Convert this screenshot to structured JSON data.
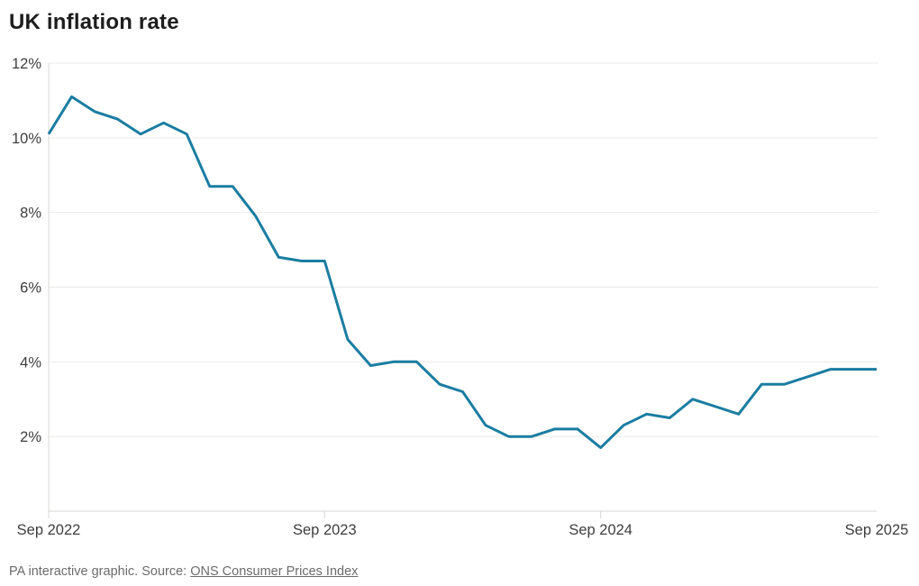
{
  "chart_data": {
    "type": "line",
    "title": "UK inflation rate",
    "x": [
      "Sep 2022",
      "Oct 2022",
      "Nov 2022",
      "Dec 2022",
      "Jan 2023",
      "Feb 2023",
      "Mar 2023",
      "Apr 2023",
      "May 2023",
      "Jun 2023",
      "Jul 2023",
      "Aug 2023",
      "Sep 2023",
      "Oct 2023",
      "Nov 2023",
      "Dec 2023",
      "Jan 2024",
      "Feb 2024",
      "Mar 2024",
      "Apr 2024",
      "May 2024",
      "Jun 2024",
      "Jul 2024",
      "Aug 2024",
      "Sep 2024",
      "Oct 2024",
      "Nov 2024",
      "Dec 2024",
      "Jan 2025",
      "Feb 2025",
      "Mar 2025",
      "Apr 2025",
      "May 2025",
      "Jun 2025",
      "Jul 2025",
      "Aug 2025",
      "Sep 2025"
    ],
    "values": [
      10.1,
      11.1,
      10.7,
      10.5,
      10.1,
      10.4,
      10.1,
      8.7,
      8.7,
      7.9,
      6.8,
      6.7,
      6.7,
      4.6,
      3.9,
      4.0,
      4.0,
      3.4,
      3.2,
      2.3,
      2.0,
      2.0,
      2.2,
      2.2,
      1.7,
      2.3,
      2.6,
      2.5,
      3.0,
      2.8,
      2.6,
      3.4,
      3.4,
      3.6,
      3.8,
      3.8,
      3.8
    ],
    "ylim": [
      0,
      12
    ],
    "y_ticks": [
      2,
      4,
      6,
      8,
      10,
      12
    ],
    "y_tick_suffix": "%",
    "x_tick_labels": [
      "Sep 2022",
      "Sep 2023",
      "Sep 2024",
      "Sep 2025"
    ],
    "x_tick_indices": [
      0,
      12,
      24,
      36
    ],
    "grid": true,
    "legend": "none",
    "line_color": "#1A7DA1"
  },
  "footer": {
    "text_prefix": "PA interactive graphic. Source: ",
    "link_label": "ONS Consumer Prices Index"
  }
}
